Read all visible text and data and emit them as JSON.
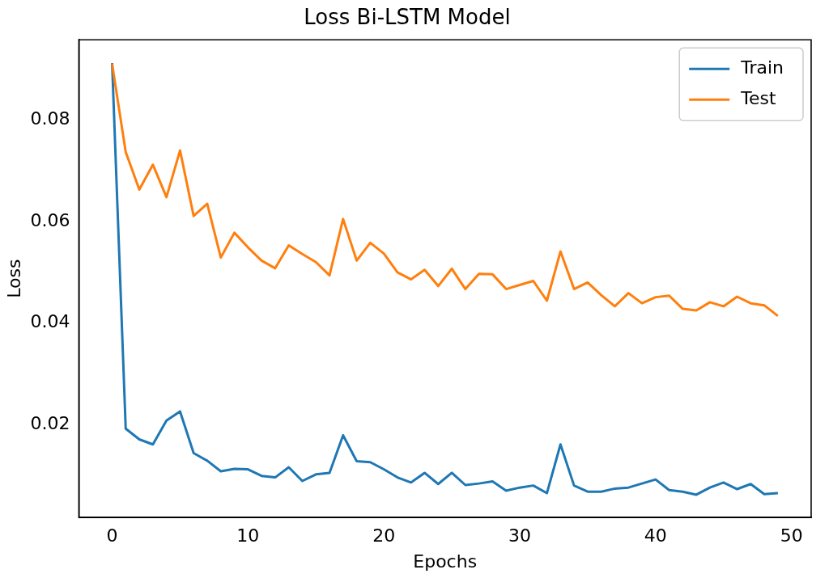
{
  "chart_data": {
    "type": "line",
    "title": "Loss Bi-LSTM Model",
    "xlabel": "Epochs",
    "ylabel": "Loss",
    "x": [
      0,
      1,
      2,
      3,
      4,
      5,
      6,
      7,
      8,
      9,
      10,
      11,
      12,
      13,
      14,
      15,
      16,
      17,
      18,
      19,
      20,
      21,
      22,
      23,
      24,
      25,
      26,
      27,
      28,
      29,
      30,
      31,
      32,
      33,
      34,
      35,
      36,
      37,
      38,
      39,
      40,
      41,
      42,
      43,
      44,
      45,
      46,
      47,
      48,
      49
    ],
    "series": [
      {
        "name": "Train",
        "color": "#1f77b4",
        "values": [
          0.0912,
          0.0192,
          0.0171,
          0.0161,
          0.0208,
          0.0226,
          0.0144,
          0.0129,
          0.0108,
          0.0113,
          0.0112,
          0.0099,
          0.0096,
          0.0116,
          0.0089,
          0.0102,
          0.0105,
          0.0179,
          0.0128,
          0.0126,
          0.0112,
          0.0096,
          0.0086,
          0.0105,
          0.0083,
          0.0105,
          0.0081,
          0.0084,
          0.0088,
          0.007,
          0.0076,
          0.008,
          0.0065,
          0.0161,
          0.008,
          0.0068,
          0.0068,
          0.0074,
          0.0076,
          0.0084,
          0.0092,
          0.0071,
          0.0068,
          0.0062,
          0.0076,
          0.0086,
          0.0073,
          0.0083,
          0.0063,
          0.0065
        ]
      },
      {
        "name": "Test",
        "color": "#ff7f0e",
        "values": [
          0.091,
          0.0737,
          0.0663,
          0.0712,
          0.0648,
          0.074,
          0.0611,
          0.0635,
          0.0529,
          0.0578,
          0.0549,
          0.0523,
          0.0508,
          0.0553,
          0.0536,
          0.052,
          0.0494,
          0.0605,
          0.0523,
          0.0558,
          0.0537,
          0.05,
          0.0486,
          0.0505,
          0.0473,
          0.0507,
          0.0467,
          0.0497,
          0.0496,
          0.0467,
          0.0475,
          0.0483,
          0.0444,
          0.0541,
          0.0467,
          0.048,
          0.0455,
          0.0433,
          0.0459,
          0.0439,
          0.0451,
          0.0454,
          0.0428,
          0.0425,
          0.0441,
          0.0433,
          0.0452,
          0.0439,
          0.0435,
          0.0414
        ]
      }
    ],
    "xlim": [
      -2.45,
      51.45
    ],
    "xticks": [
      0,
      10,
      20,
      30,
      40,
      50
    ],
    "ylim": [
      0.0017,
      0.0958
    ],
    "yticks": [
      0.02,
      0.04,
      0.06,
      0.08
    ],
    "legend": "top right",
    "marker": "none",
    "line_style": "solid"
  }
}
